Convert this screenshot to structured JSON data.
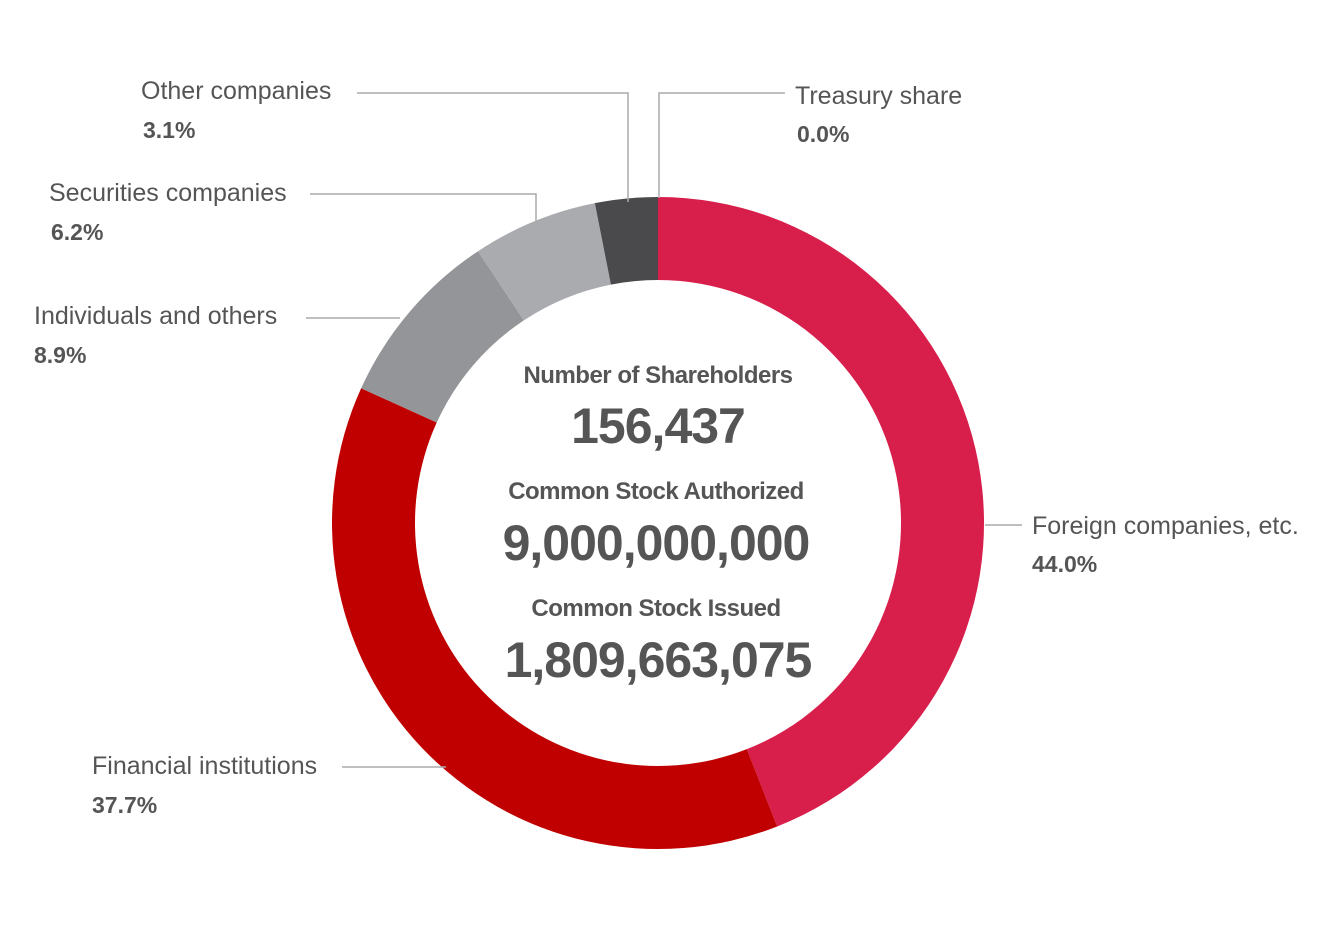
{
  "chart_data": {
    "type": "pie",
    "style": "donut",
    "categories": [
      "Foreign companies, etc.",
      "Financial institutions",
      "Individuals and others",
      "Securities companies",
      "Other companies",
      "Treasury share"
    ],
    "values": [
      44.0,
      37.7,
      8.9,
      6.2,
      3.1,
      0.0
    ],
    "value_labels": [
      "44.0%",
      "37.7%",
      "8.9%",
      "6.2%",
      "3.1%",
      "0.0%"
    ],
    "colors": [
      "#d81e4b",
      "#c00000",
      "#939598",
      "#a9abae",
      "#4a4a4c",
      "#4a4a4c"
    ],
    "unit": "%"
  },
  "center": {
    "shareholders_label": "Number of Shareholders",
    "shareholders_value": "156,437",
    "authorized_label": "Common Stock Authorized",
    "authorized_value": "9,000,000,000",
    "issued_label": "Common Stock Issued",
    "issued_value": "1,809,663,075"
  }
}
